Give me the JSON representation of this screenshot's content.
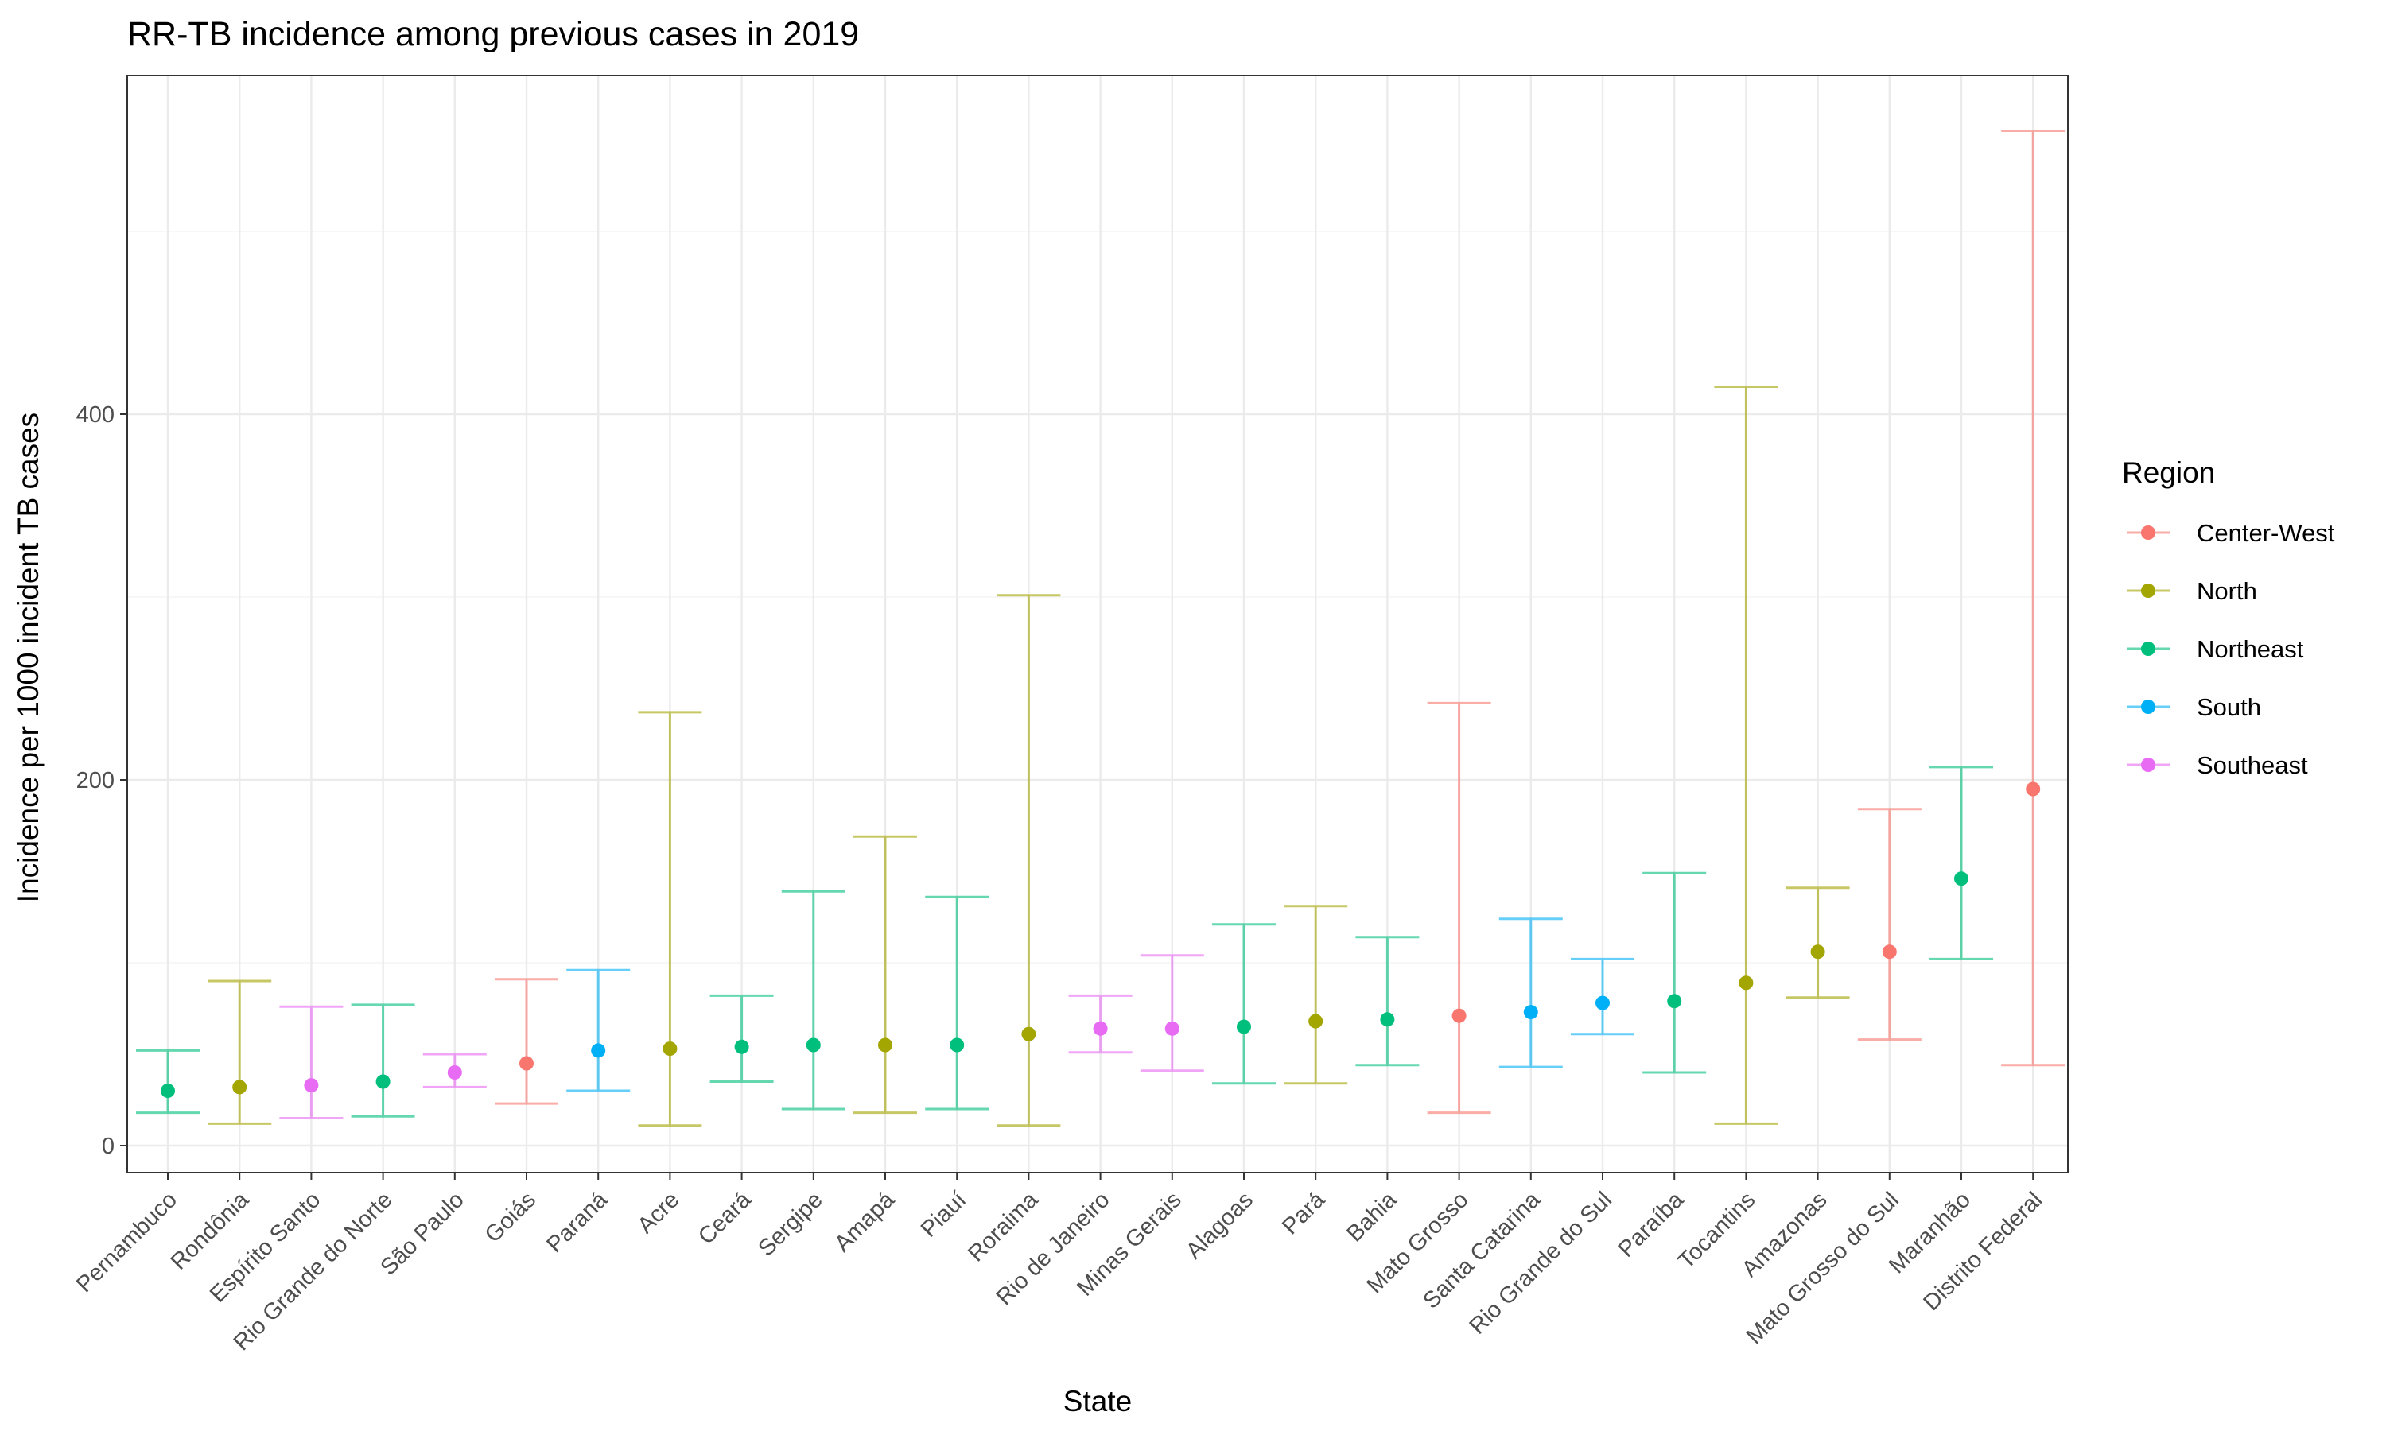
{
  "chart_data": {
    "type": "scatter",
    "title": "RR-TB incidence among previous cases in 2019",
    "xlabel": "State",
    "ylabel": "Incidence per 1000 incident TB cases",
    "ylim": [
      -30,
      580
    ],
    "yticks": [
      0,
      200,
      400
    ],
    "grid": true,
    "legend": {
      "title": "Region",
      "placement": "right",
      "entries": [
        {
          "name": "Center-West",
          "color": "#F8766D"
        },
        {
          "name": "North",
          "color": "#A3A500"
        },
        {
          "name": "Northeast",
          "color": "#00BF7D"
        },
        {
          "name": "South",
          "color": "#00B0F6"
        },
        {
          "name": "Southeast",
          "color": "#E76BF3"
        }
      ]
    },
    "categories": [
      "Pernambuco",
      "Rondônia",
      "Espírito Santo",
      "Rio Grande do Norte",
      "São Paulo",
      "Goiás",
      "Paraná",
      "Acre",
      "Ceará",
      "Sergipe",
      "Amapá",
      "Piauí",
      "Roraima",
      "Rio de Janeiro",
      "Minas Gerais",
      "Alagoas",
      "Pará",
      "Bahia",
      "Mato Grosso",
      "Santa Catarina",
      "Rio Grande do Sul",
      "Paraíba",
      "Tocantins",
      "Amazonas",
      "Mato Grosso do Sul",
      "Maranhão",
      "Distrito Federal"
    ],
    "points": [
      {
        "state": "Pernambuco",
        "region": "Northeast",
        "value": 30,
        "lower": 18,
        "upper": 52
      },
      {
        "state": "Rondônia",
        "region": "North",
        "value": 32,
        "lower": 12,
        "upper": 90
      },
      {
        "state": "Espírito Santo",
        "region": "Southeast",
        "value": 33,
        "lower": 15,
        "upper": 76
      },
      {
        "state": "Rio Grande do Norte",
        "region": "Northeast",
        "value": 35,
        "lower": 16,
        "upper": 77
      },
      {
        "state": "São Paulo",
        "region": "Southeast",
        "value": 40,
        "lower": 32,
        "upper": 50
      },
      {
        "state": "Goiás",
        "region": "Center-West",
        "value": 45,
        "lower": 23,
        "upper": 91
      },
      {
        "state": "Paraná",
        "region": "South",
        "value": 52,
        "lower": 30,
        "upper": 96
      },
      {
        "state": "Acre",
        "region": "North",
        "value": 53,
        "lower": 11,
        "upper": 237
      },
      {
        "state": "Ceará",
        "region": "Northeast",
        "value": 54,
        "lower": 35,
        "upper": 82
      },
      {
        "state": "Sergipe",
        "region": "Northeast",
        "value": 55,
        "lower": 20,
        "upper": 139
      },
      {
        "state": "Amapá",
        "region": "North",
        "value": 55,
        "lower": 18,
        "upper": 169
      },
      {
        "state": "Piauí",
        "region": "Northeast",
        "value": 55,
        "lower": 20,
        "upper": 136
      },
      {
        "state": "Roraima",
        "region": "North",
        "value": 61,
        "lower": 11,
        "upper": 301
      },
      {
        "state": "Rio de Janeiro",
        "region": "Southeast",
        "value": 64,
        "lower": 51,
        "upper": 82
      },
      {
        "state": "Minas Gerais",
        "region": "Southeast",
        "value": 64,
        "lower": 41,
        "upper": 104
      },
      {
        "state": "Alagoas",
        "region": "Northeast",
        "value": 65,
        "lower": 34,
        "upper": 121
      },
      {
        "state": "Pará",
        "region": "North",
        "value": 68,
        "lower": 34,
        "upper": 131
      },
      {
        "state": "Bahia",
        "region": "Northeast",
        "value": 69,
        "lower": 44,
        "upper": 114
      },
      {
        "state": "Mato Grosso",
        "region": "Center-West",
        "value": 71,
        "lower": 18,
        "upper": 242
      },
      {
        "state": "Santa Catarina",
        "region": "South",
        "value": 73,
        "lower": 43,
        "upper": 124
      },
      {
        "state": "Rio Grande do Sul",
        "region": "South",
        "value": 78,
        "lower": 61,
        "upper": 102
      },
      {
        "state": "Paraíba",
        "region": "Northeast",
        "value": 79,
        "lower": 40,
        "upper": 149
      },
      {
        "state": "Tocantins",
        "region": "North",
        "value": 89,
        "lower": 12,
        "upper": 415
      },
      {
        "state": "Amazonas",
        "region": "North",
        "value": 106,
        "lower": 81,
        "upper": 141
      },
      {
        "state": "Mato Grosso do Sul",
        "region": "Center-West",
        "value": 106,
        "lower": 58,
        "upper": 184
      },
      {
        "state": "Maranhão",
        "region": "Northeast",
        "value": 146,
        "lower": 102,
        "upper": 207
      },
      {
        "state": "Distrito Federal",
        "region": "Center-West",
        "value": 195,
        "lower": 44,
        "upper": 555
      }
    ]
  }
}
